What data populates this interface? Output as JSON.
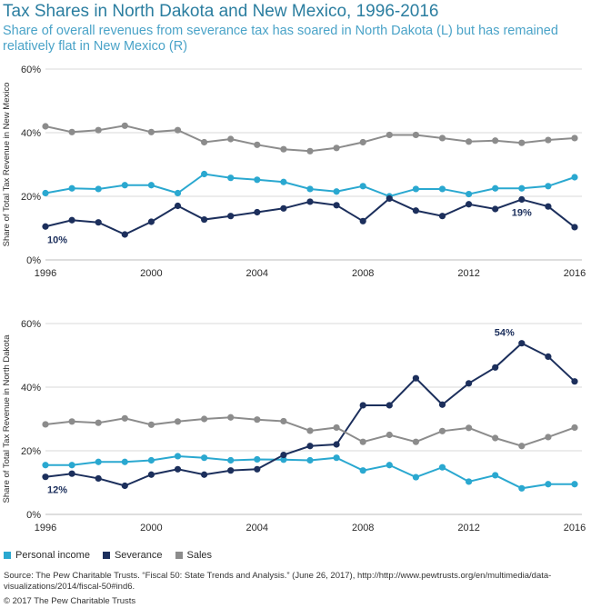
{
  "title": "Tax Shares in North Dakota and New Mexico, 1996-2016",
  "subtitle": "Share of overall revenues from severance tax has soared in North Dakota (L) but has remained relatively flat in New Mexico (R)",
  "legend": {
    "personal_income": "Personal income",
    "severance": "Severance",
    "sales": "Sales"
  },
  "colors": {
    "personal_income": "#2aa8d0",
    "severance": "#1c2f5c",
    "sales": "#8c8c8c",
    "grid": "#d9d9d9"
  },
  "source": "Source: The Pew Charitable Trusts. “Fiscal 50: State Trends and Analysis.” (June 26, 2017), http://http://www.pewtrusts.org/en/multimedia/data-visualizations/2014/fiscal-50#ind6.",
  "copyright": "© 2017 The Pew Charitable Trusts",
  "chart_data": [
    {
      "type": "line",
      "ylabel": "Share of Total Tax Revenue in New Mexico",
      "ylim": [
        0,
        60
      ],
      "yticks": [
        "0%",
        "20%",
        "40%",
        "60%"
      ],
      "xticks": [
        "1996",
        "2000",
        "2004",
        "2008",
        "2012",
        "2016"
      ],
      "x": [
        1996,
        1997,
        1998,
        1999,
        2000,
        2001,
        2002,
        2003,
        2004,
        2005,
        2006,
        2007,
        2008,
        2009,
        2010,
        2011,
        2012,
        2013,
        2014,
        2015,
        2016
      ],
      "grid": true,
      "series": [
        {
          "name": "Personal income",
          "values": [
            21,
            22.5,
            22.3,
            23.5,
            23.5,
            21,
            27,
            25.8,
            25.2,
            24.5,
            22.3,
            21.5,
            23.2,
            20,
            22.3,
            22.3,
            20.7,
            22.5,
            22.5,
            23.2,
            26
          ]
        },
        {
          "name": "Severance",
          "values": [
            10.5,
            12.5,
            11.8,
            8,
            12,
            17,
            12.7,
            13.8,
            15,
            16.2,
            18.3,
            17.2,
            12.2,
            19.3,
            15.5,
            13.8,
            17.5,
            16,
            19,
            16.8,
            10.3
          ]
        },
        {
          "name": "Sales",
          "values": [
            42,
            40.2,
            40.8,
            42.2,
            40.2,
            40.8,
            37,
            38,
            36.2,
            34.8,
            34.2,
            35.2,
            37,
            39.3,
            39.3,
            38.3,
            37.2,
            37.5,
            36.8,
            37.7,
            38.3
          ]
        }
      ],
      "annotations": [
        {
          "text": "10%",
          "series": "Severance",
          "x": 1996
        },
        {
          "text": "19%",
          "series": "Severance",
          "x": 2014
        }
      ]
    },
    {
      "type": "line",
      "ylabel": "Share of Total Tax Revenue in North Dakota",
      "ylim": [
        0,
        60
      ],
      "yticks": [
        "0%",
        "20%",
        "40%",
        "60%"
      ],
      "xticks": [
        "1996",
        "2000",
        "2004",
        "2008",
        "2012",
        "2016"
      ],
      "x": [
        1996,
        1997,
        1998,
        1999,
        2000,
        2001,
        2002,
        2003,
        2004,
        2005,
        2006,
        2007,
        2008,
        2009,
        2010,
        2011,
        2012,
        2013,
        2014,
        2015,
        2016
      ],
      "grid": true,
      "series": [
        {
          "name": "Personal income",
          "values": [
            15.5,
            15.5,
            16.5,
            16.5,
            17,
            18.3,
            17.8,
            17,
            17.3,
            17.2,
            17,
            17.8,
            13.8,
            15.5,
            11.7,
            14.8,
            10.3,
            12.3,
            8.2,
            9.5,
            9.5
          ]
        },
        {
          "name": "Severance",
          "values": [
            11.8,
            12.8,
            11.3,
            9,
            12.5,
            14.2,
            12.5,
            13.8,
            14.2,
            18.7,
            21.5,
            22,
            34.3,
            34.3,
            42.8,
            34.5,
            41.2,
            46.2,
            53.8,
            49.6,
            41.8
          ]
        },
        {
          "name": "Sales",
          "values": [
            28.3,
            29.2,
            28.8,
            30.2,
            28.2,
            29.2,
            30,
            30.5,
            29.8,
            29.3,
            26.3,
            27.3,
            22.8,
            25,
            22.8,
            26.2,
            27.2,
            24,
            21.5,
            24.3,
            27.3
          ]
        }
      ],
      "annotations": [
        {
          "text": "12%",
          "series": "Severance",
          "x": 1996
        },
        {
          "text": "54%",
          "series": "Severance",
          "x": 2014
        }
      ]
    }
  ]
}
